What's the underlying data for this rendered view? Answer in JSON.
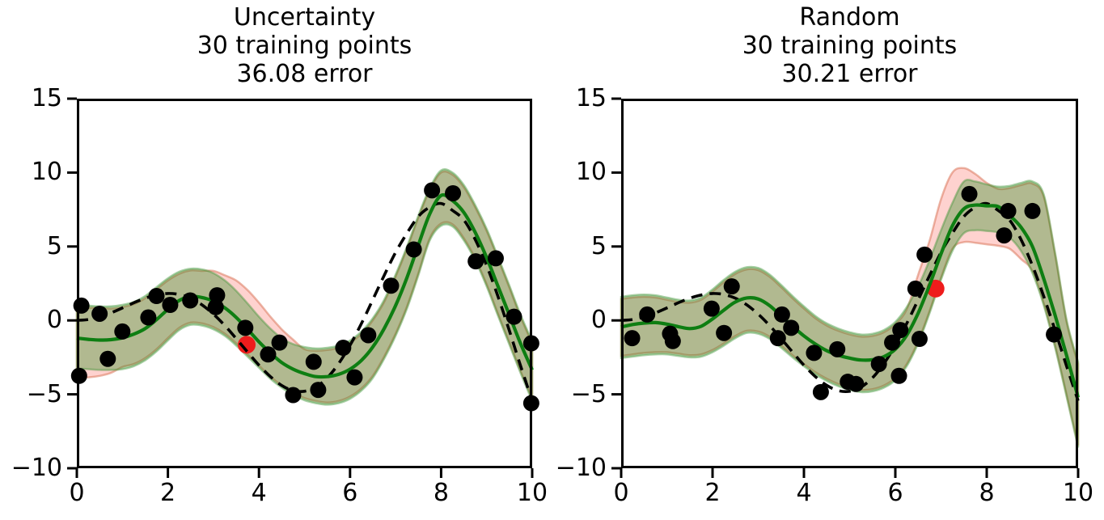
{
  "figure": {
    "background": "#ffffff",
    "colors": {
      "true_line": "#000000",
      "mean_line": "#0e7e12",
      "band_green_fill": "rgba(0,128,0,0.30)",
      "band_green_edge": "rgba(70,150,60,0.45)",
      "band_red_fill": "rgba(253,80,70,0.26)",
      "band_red_edge": "rgba(215,110,80,0.50)",
      "point_black": "#000000",
      "point_red": "#ee1c1c"
    }
  },
  "axes": {
    "xlim": [
      0,
      10
    ],
    "ylim": [
      -10,
      15
    ],
    "xticks": [
      0,
      2,
      4,
      6,
      8,
      10
    ],
    "yticks": [
      15,
      10,
      5,
      0,
      -5,
      -10
    ],
    "xtick_labels": [
      "0",
      "2",
      "4",
      "6",
      "8",
      "10"
    ],
    "ytick_labels": [
      "15",
      "10",
      "5",
      "0",
      "−5",
      "−10"
    ]
  },
  "chart_data": [
    {
      "type": "line",
      "id": "uncertainty",
      "title_lines": [
        "Uncertainty",
        "30 training points",
        "36.08 error"
      ],
      "strategy": "Uncertainty",
      "n_training_points": 30,
      "error": 36.08,
      "legend": "none",
      "grid": false,
      "curves": {
        "x": [
          0,
          0.25,
          0.5,
          0.75,
          1,
          1.25,
          1.5,
          1.75,
          2,
          2.25,
          2.5,
          2.75,
          3,
          3.25,
          3.5,
          3.75,
          4,
          4.25,
          4.5,
          4.75,
          5,
          5.25,
          5.5,
          5.75,
          6,
          6.25,
          6.5,
          6.75,
          7,
          7.25,
          7.5,
          7.75,
          8,
          8.25,
          8.5,
          8.75,
          9,
          9.25,
          9.5,
          9.75,
          10
        ],
        "true_fn": [
          0,
          0.06,
          0.24,
          0.51,
          0.84,
          1.19,
          1.5,
          1.72,
          1.82,
          1.75,
          1.5,
          1.05,
          0.42,
          -0.35,
          -1.23,
          -2.14,
          -3.03,
          -3.8,
          -4.4,
          -4.75,
          -4.79,
          -4.51,
          -3.88,
          -2.92,
          -1.68,
          -0.21,
          1.4,
          3.04,
          4.6,
          5.9,
          7.03,
          7.66,
          7.91,
          7.44,
          6.79,
          5.47,
          3.71,
          1.61,
          -0.71,
          -3.12,
          -5.44
        ],
        "mean": [
          -1.2,
          -1.28,
          -1.33,
          -1.3,
          -1.18,
          -0.93,
          -0.55,
          0.05,
          0.75,
          1.35,
          1.62,
          1.55,
          1.3,
          0.85,
          0.2,
          -0.6,
          -1.45,
          -2.2,
          -2.85,
          -3.3,
          -3.6,
          -3.8,
          -3.8,
          -3.65,
          -3.3,
          -2.7,
          -1.8,
          -0.55,
          1,
          2.9,
          5.1,
          7.2,
          8.45,
          8.1,
          7.3,
          5.95,
          4.25,
          2.3,
          0.35,
          -1.6,
          -3.35
        ],
        "band_upper": [
          1.05,
          1,
          0.95,
          0.95,
          1.05,
          1.25,
          1.65,
          2.25,
          2.85,
          3.3,
          3.5,
          3.45,
          3.2,
          2.7,
          2,
          1.15,
          0.25,
          -0.55,
          -1.2,
          -1.6,
          -1.8,
          -1.9,
          -1.85,
          -1.7,
          -1.35,
          -0.75,
          0.15,
          1.4,
          3.1,
          5,
          7.1,
          8.95,
          10.15,
          10,
          9.15,
          7.8,
          6.2,
          4.3,
          2.35,
          0.35,
          -1.4
        ],
        "band_lower": [
          -3.25,
          -3.3,
          -3.35,
          -3.35,
          -3.3,
          -3.1,
          -2.7,
          -2.1,
          -1.35,
          -0.65,
          -0.3,
          -0.35,
          -0.6,
          -1.05,
          -1.7,
          -2.45,
          -3.2,
          -3.95,
          -4.55,
          -5.05,
          -5.4,
          -5.6,
          -5.7,
          -5.6,
          -5.3,
          -4.75,
          -3.9,
          -2.6,
          -1.05,
          0.8,
          3.05,
          5.4,
          6.4,
          6.35,
          5.4,
          4.05,
          2.3,
          0.3,
          -1.65,
          -3.6,
          -5.45
        ],
        "red_band_upper": [
          0.85,
          0.85,
          0.85,
          0.8,
          0.9,
          1.1,
          1.5,
          2.1,
          2.7,
          3.15,
          3.38,
          3.35,
          3.35,
          3.05,
          2.7,
          2.05,
          1.2,
          0.25,
          -0.6,
          -1.3,
          -1.95,
          -2.05,
          -2,
          -1.85,
          -1.5,
          -0.9,
          0,
          1.25,
          2.95,
          4.85,
          6.95,
          8.8,
          10,
          9.85,
          9,
          7.65,
          6.05,
          4.15,
          2.2,
          0.2,
          -1.55
        ],
        "red_band_lower": [
          -3.85,
          -3.85,
          -3.75,
          -3.55,
          -3.15,
          -2.95,
          -2.55,
          -1.95,
          -1.2,
          -0.5,
          -0.15,
          -0.2,
          -0.45,
          -0.9,
          -1.55,
          -2.3,
          -3.05,
          -3.8,
          -4.4,
          -4.9,
          -5.25,
          -5.45,
          -5.55,
          -5.45,
          -5.15,
          -4.6,
          -3.75,
          -2.45,
          -0.9,
          0.95,
          3.2,
          5.55,
          6.55,
          6.5,
          5.55,
          4.2,
          2.45,
          0.45,
          -1.5,
          -3.45,
          -5.3
        ]
      },
      "points": [
        [
          0.05,
          -3.75
        ],
        [
          0.1,
          1.0
        ],
        [
          0.5,
          0.45
        ],
        [
          0.68,
          -2.6
        ],
        [
          1.0,
          -0.75
        ],
        [
          1.57,
          0.2
        ],
        [
          1.75,
          1.65
        ],
        [
          2.05,
          1.05
        ],
        [
          2.49,
          1.35
        ],
        [
          3.05,
          0.9
        ],
        [
          3.08,
          1.7
        ],
        [
          3.7,
          -0.5
        ],
        [
          4.2,
          -2.3
        ],
        [
          4.45,
          -1.5
        ],
        [
          4.75,
          -5.05
        ],
        [
          5.2,
          -2.8
        ],
        [
          5.3,
          -4.7
        ],
        [
          5.85,
          -1.85
        ],
        [
          6.1,
          -3.85
        ],
        [
          6.4,
          -1.0
        ],
        [
          6.9,
          2.35
        ],
        [
          7.4,
          4.8
        ],
        [
          7.8,
          8.8
        ],
        [
          8.26,
          8.6
        ],
        [
          8.76,
          4.0
        ],
        [
          9.2,
          4.2
        ],
        [
          9.6,
          0.25
        ],
        [
          9.98,
          -1.55
        ],
        [
          9.98,
          -5.6
        ]
      ],
      "selected_point": [
        3.73,
        -1.65
      ]
    },
    {
      "type": "line",
      "id": "random",
      "title_lines": [
        "Random",
        "30 training points",
        "30.21 error"
      ],
      "strategy": "Random",
      "n_training_points": 30,
      "error": 30.21,
      "legend": "none",
      "grid": false,
      "curves": {
        "x": [
          0,
          0.25,
          0.5,
          0.75,
          1,
          1.25,
          1.5,
          1.75,
          2,
          2.25,
          2.5,
          2.75,
          3,
          3.25,
          3.5,
          3.75,
          4,
          4.25,
          4.5,
          4.75,
          5,
          5.25,
          5.5,
          5.75,
          6,
          6.25,
          6.5,
          6.75,
          7,
          7.25,
          7.5,
          7.75,
          8,
          8.25,
          8.5,
          8.75,
          9,
          9.25,
          9.5,
          9.75,
          10
        ],
        "true_fn": [
          0,
          0.06,
          0.24,
          0.51,
          0.84,
          1.19,
          1.5,
          1.72,
          1.82,
          1.75,
          1.5,
          1.05,
          0.42,
          -0.35,
          -1.23,
          -2.14,
          -3.03,
          -3.8,
          -4.4,
          -4.75,
          -4.79,
          -4.51,
          -3.88,
          -2.92,
          -1.68,
          -0.21,
          1.4,
          3.04,
          4.6,
          5.9,
          7.03,
          7.66,
          7.91,
          7.44,
          6.79,
          5.47,
          3.71,
          1.61,
          -0.71,
          -3.12,
          -5.44
        ],
        "mean": [
          -0.45,
          -0.28,
          -0.18,
          -0.15,
          -0.25,
          -0.42,
          -0.55,
          -0.4,
          0.1,
          0.7,
          1.25,
          1.52,
          1.45,
          1,
          0.3,
          -0.4,
          -1.05,
          -1.6,
          -2.05,
          -2.35,
          -2.55,
          -2.68,
          -2.66,
          -2.45,
          -1.95,
          -1,
          0.5,
          2.4,
          4.5,
          6.4,
          7.55,
          7.8,
          7.75,
          7.7,
          7.1,
          6.3,
          5,
          2.8,
          0.3,
          -2.4,
          -5.2
        ],
        "band_upper": [
          1.6,
          1.7,
          1.75,
          1.7,
          1.55,
          1.4,
          1.35,
          1.55,
          2.1,
          2.75,
          3.3,
          3.6,
          3.55,
          3.1,
          2.4,
          1.65,
          0.95,
          0.3,
          -0.2,
          -0.55,
          -0.8,
          -0.95,
          -0.9,
          -0.65,
          -0.1,
          0.9,
          2.3,
          4.1,
          6.1,
          7.95,
          9.4,
          9.4,
          9.2,
          9.05,
          9.1,
          9.3,
          9.4,
          8.5,
          4.5,
          0,
          -2.8
        ],
        "band_lower": [
          -2.55,
          -2.45,
          -2.35,
          -2.3,
          -2.3,
          -2.4,
          -2.5,
          -2.45,
          -2.15,
          -1.7,
          -1.2,
          -0.85,
          -0.9,
          -1.25,
          -1.85,
          -2.5,
          -3.1,
          -3.65,
          -4.1,
          -4.45,
          -4.7,
          -4.85,
          -4.8,
          -4.55,
          -4.05,
          -3.1,
          -1.55,
          0.5,
          2.75,
          4.7,
          5.9,
          6.1,
          6.05,
          5.95,
          5.6,
          4.7,
          3.2,
          1,
          -1.9,
          -5.2,
          -8.6
        ],
        "red_band_upper": [
          1.45,
          1.55,
          1.6,
          1.55,
          1.4,
          1.25,
          1.2,
          1.4,
          1.95,
          2.6,
          3.15,
          3.45,
          3.4,
          2.95,
          2.25,
          1.5,
          0.8,
          0.15,
          -0.35,
          -0.7,
          -0.95,
          -1.1,
          -1.05,
          -0.8,
          -0.25,
          0.75,
          3.1,
          5.4,
          8.2,
          10,
          10.3,
          9.9,
          9.3,
          8.9,
          8.95,
          9.15,
          9.25,
          8.35,
          4.35,
          -0.15,
          -2.95
        ],
        "red_band_lower": [
          -2.4,
          -2.3,
          -2.2,
          -2.15,
          -2.15,
          -2.25,
          -2.35,
          -2.3,
          -2,
          -1.55,
          -1.05,
          -0.7,
          -0.75,
          -1.1,
          -1.7,
          -2.35,
          -2.95,
          -3.5,
          -3.95,
          -4.3,
          -4.55,
          -4.7,
          -4.65,
          -4.4,
          -3.9,
          -2.95,
          -1.4,
          0.65,
          2.9,
          4.85,
          5.3,
          5.25,
          5.15,
          5.05,
          4.85,
          4.15,
          3.35,
          1.15,
          -1.75,
          -5.05,
          -8.45
        ]
      },
      "points": [
        [
          0.24,
          -1.2
        ],
        [
          0.57,
          0.4
        ],
        [
          1.07,
          -0.9
        ],
        [
          1.13,
          -1.4
        ],
        [
          1.98,
          0.8
        ],
        [
          2.25,
          -0.85
        ],
        [
          2.42,
          2.3
        ],
        [
          3.43,
          -1.2
        ],
        [
          3.52,
          0.4
        ],
        [
          3.72,
          -0.5
        ],
        [
          4.22,
          -2.2
        ],
        [
          4.37,
          -4.85
        ],
        [
          4.73,
          -1.95
        ],
        [
          4.96,
          -4.15
        ],
        [
          5.14,
          -4.3
        ],
        [
          5.64,
          -2.95
        ],
        [
          5.93,
          -1.5
        ],
        [
          6.08,
          -3.75
        ],
        [
          6.11,
          -0.65
        ],
        [
          6.44,
          2.15
        ],
        [
          6.53,
          -1.25
        ],
        [
          6.64,
          4.45
        ],
        [
          7.62,
          8.55
        ],
        [
          8.38,
          5.75
        ],
        [
          8.47,
          7.4
        ],
        [
          9.0,
          7.4
        ],
        [
          9.47,
          -0.95
        ]
      ],
      "selected_point": [
        6.88,
        2.15
      ]
    }
  ]
}
